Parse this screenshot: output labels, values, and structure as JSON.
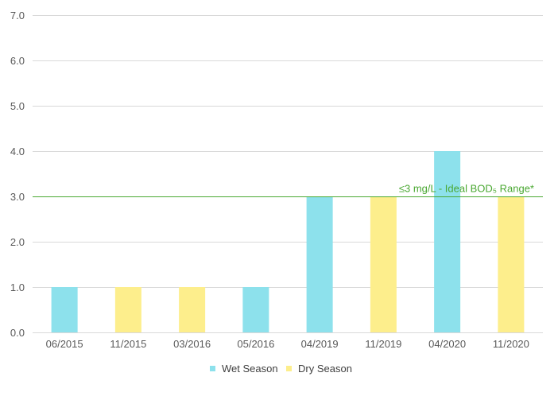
{
  "chart_data": {
    "type": "bar",
    "categories": [
      "06/2015",
      "11/2015",
      "03/2016",
      "05/2016",
      "04/2019",
      "11/2019",
      "04/2020",
      "11/2020"
    ],
    "values": [
      1.0,
      1.0,
      1.0,
      1.0,
      3.0,
      3.0,
      4.0,
      3.0
    ],
    "season": [
      "Wet Season",
      "Dry Season",
      "Dry Season",
      "Wet Season",
      "Wet Season",
      "Dry Season",
      "Wet Season",
      "Dry Season"
    ],
    "ylim": [
      0,
      7
    ],
    "yticks": [
      "0.0",
      "1.0",
      "2.0",
      "3.0",
      "4.0",
      "5.0",
      "6.0",
      "7.0"
    ],
    "grid": true,
    "legend": {
      "placement": "bottom",
      "entries": [
        {
          "name": "Wet Season",
          "color": "#8de1ec"
        },
        {
          "name": "Dry Season",
          "color": "#fdee8c"
        }
      ]
    },
    "reference_line": {
      "value": 3.0,
      "label": "≤3 mg/L - Ideal BOD₅ Range*",
      "color": "#4aa832"
    },
    "colors": {
      "grid": "#d9d9d9",
      "axis_text": "#595959"
    }
  }
}
